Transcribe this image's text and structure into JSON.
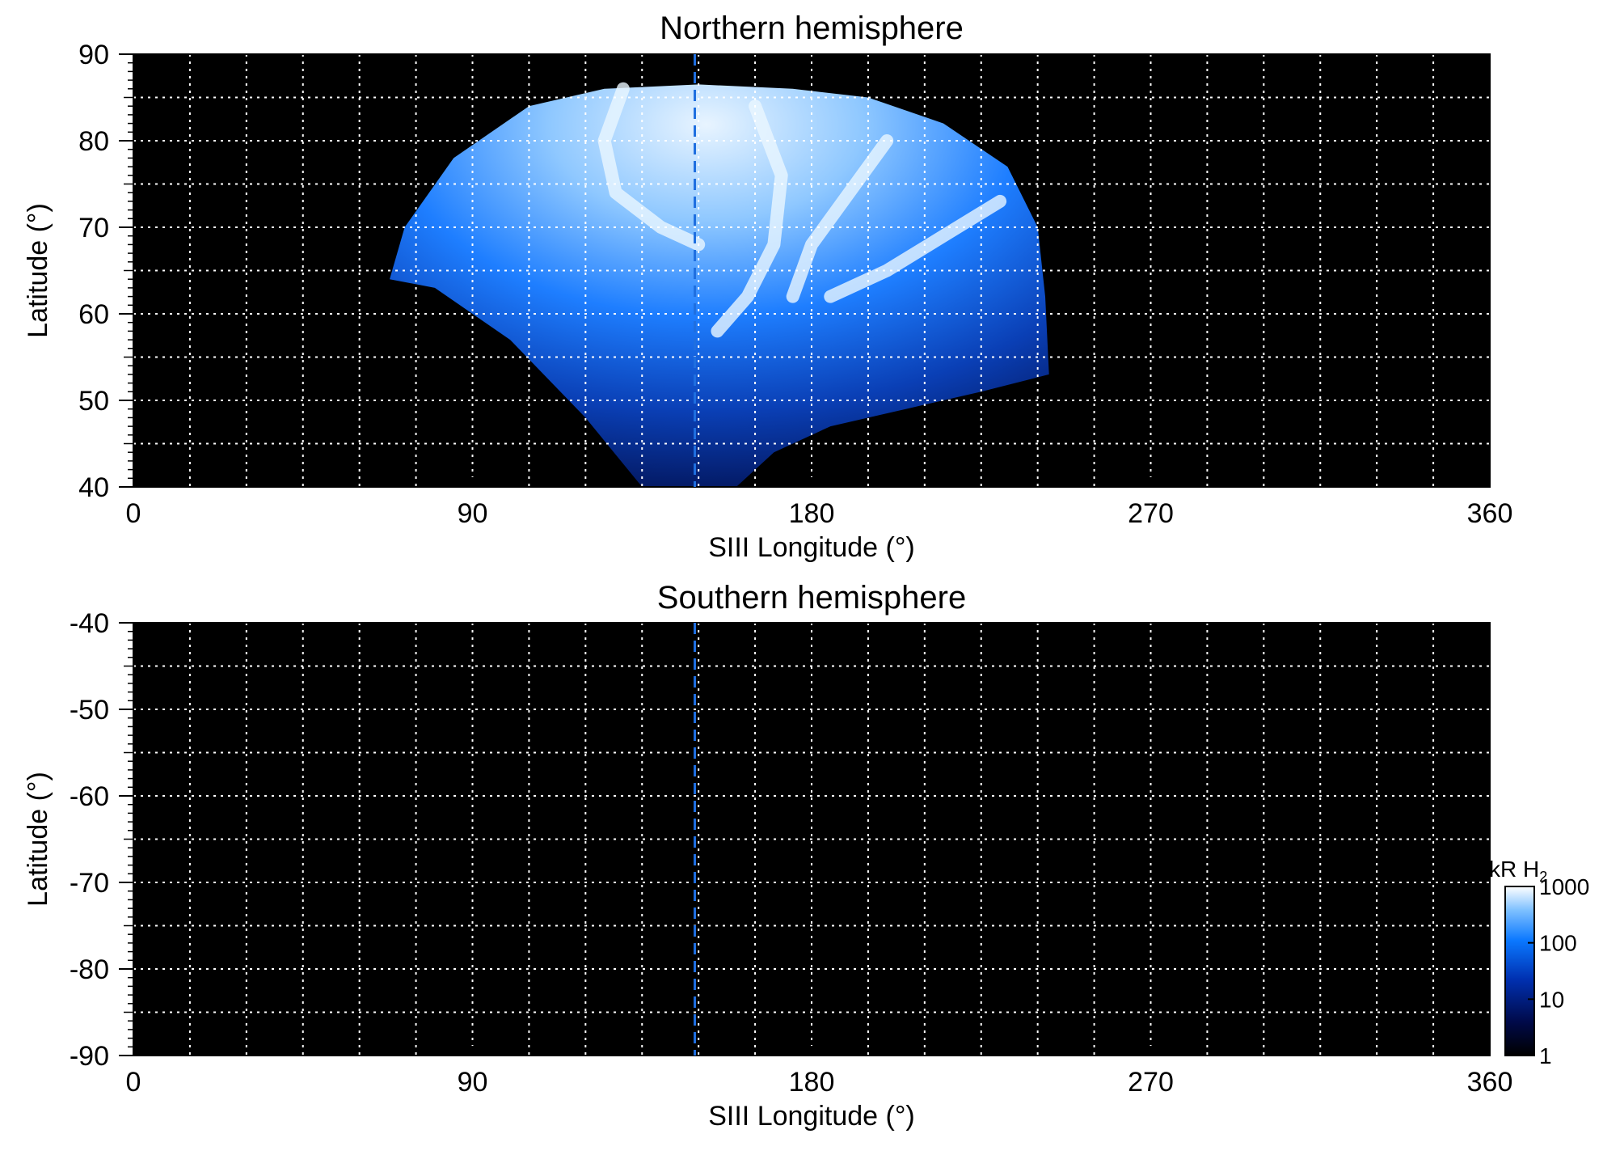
{
  "chart_data": [
    {
      "type": "heatmap",
      "title": "Northern hemisphere",
      "xlabel": "SIII Longitude (°)",
      "ylabel": "Latitude (°)",
      "xlim": [
        0,
        360
      ],
      "ylim": [
        40,
        90
      ],
      "xticks": [
        0,
        90,
        180,
        270,
        360
      ],
      "yticks": [
        40,
        50,
        60,
        70,
        80,
        90
      ],
      "grid": true,
      "grid_spacing_deg": {
        "x": 15,
        "y": 5
      },
      "colormap": "black-blue-white",
      "reference_longitude": 149,
      "reference_line": "dashed blue vertical",
      "emission_region": {
        "description_points_lon_lat": [
          [
            68,
            64
          ],
          [
            72,
            70
          ],
          [
            85,
            78
          ],
          [
            105,
            84
          ],
          [
            125,
            86
          ],
          [
            150,
            86.5
          ],
          [
            175,
            86
          ],
          [
            195,
            85
          ],
          [
            215,
            82
          ],
          [
            232,
            77
          ],
          [
            240,
            70
          ],
          [
            242,
            62
          ],
          [
            243,
            53
          ],
          [
            225,
            51
          ],
          [
            205,
            49
          ],
          [
            185,
            47
          ],
          [
            170,
            44
          ],
          [
            160,
            40
          ],
          [
            135,
            40
          ],
          [
            120,
            48
          ],
          [
            100,
            57
          ],
          [
            80,
            63
          ]
        ],
        "bright_arcs_lon_lat": [
          [
            [
              130,
              86
            ],
            [
              125,
              80
            ],
            [
              128,
              74
            ],
            [
              140,
              70
            ],
            [
              150,
              68
            ]
          ],
          [
            [
              165,
              84
            ],
            [
              172,
              76
            ],
            [
              170,
              68
            ],
            [
              163,
              62
            ],
            [
              155,
              58
            ]
          ],
          [
            [
              200,
              80
            ],
            [
              190,
              74
            ],
            [
              180,
              68
            ],
            [
              175,
              62
            ]
          ],
          [
            [
              230,
              73
            ],
            [
              215,
              69
            ],
            [
              200,
              65
            ],
            [
              185,
              62
            ]
          ]
        ]
      }
    },
    {
      "type": "heatmap",
      "title": "Southern hemisphere",
      "xlabel": "SIII Longitude (°)",
      "ylabel": "Latitude (°)",
      "xlim": [
        0,
        360
      ],
      "ylim": [
        -90,
        -40
      ],
      "xticks": [
        0,
        90,
        180,
        270,
        360
      ],
      "yticks": [
        -40,
        -50,
        -60,
        -70,
        -80,
        -90
      ],
      "grid": true,
      "grid_spacing_deg": {
        "x": 15,
        "y": 5
      },
      "reference_longitude": 149,
      "reference_line": "dashed blue vertical"
    }
  ],
  "colorbar": {
    "label_main": "kR H",
    "label_sub": "2",
    "scale": "log",
    "range": [
      1,
      1000
    ],
    "ticks": [
      "1",
      "10",
      "100",
      "1000"
    ],
    "colors": [
      "#000000",
      "#000a4a",
      "#0030b0",
      "#0a78ff",
      "#7ec0ff",
      "#ffffff"
    ]
  }
}
